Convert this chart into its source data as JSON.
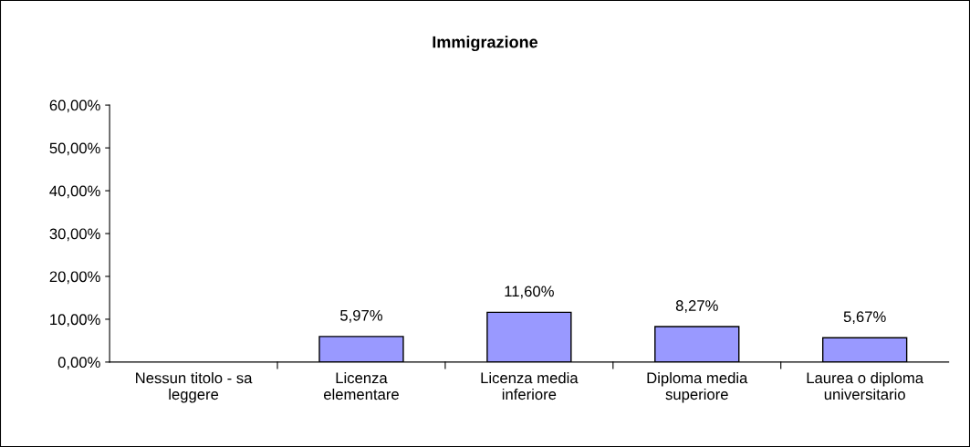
{
  "chart_data": {
    "type": "bar",
    "title": "Immigrazione",
    "categories": [
      "Nessun titolo - sa\nleggere",
      "Licenza\nelementare",
      "Licenza media\ninferiore",
      "Diploma media\nsuperiore",
      "Laurea o diploma\nuniversitario"
    ],
    "values": [
      null,
      5.97,
      11.6,
      8.27,
      5.67
    ],
    "value_labels": [
      null,
      "5,97%",
      "11,60%",
      "8,27%",
      "5,67%"
    ],
    "color": "#9999ff",
    "ylim": [
      0,
      60
    ],
    "yticks": [
      {
        "value": 0,
        "label": "0,00%"
      },
      {
        "value": 10,
        "label": "10,00%"
      },
      {
        "value": 20,
        "label": "20,00%"
      },
      {
        "value": 30,
        "label": "30,00%"
      },
      {
        "value": 40,
        "label": "40,00%"
      },
      {
        "value": 50,
        "label": "50,00%"
      },
      {
        "value": 60,
        "label": "60,00%"
      }
    ],
    "grid": false,
    "legend": false
  }
}
